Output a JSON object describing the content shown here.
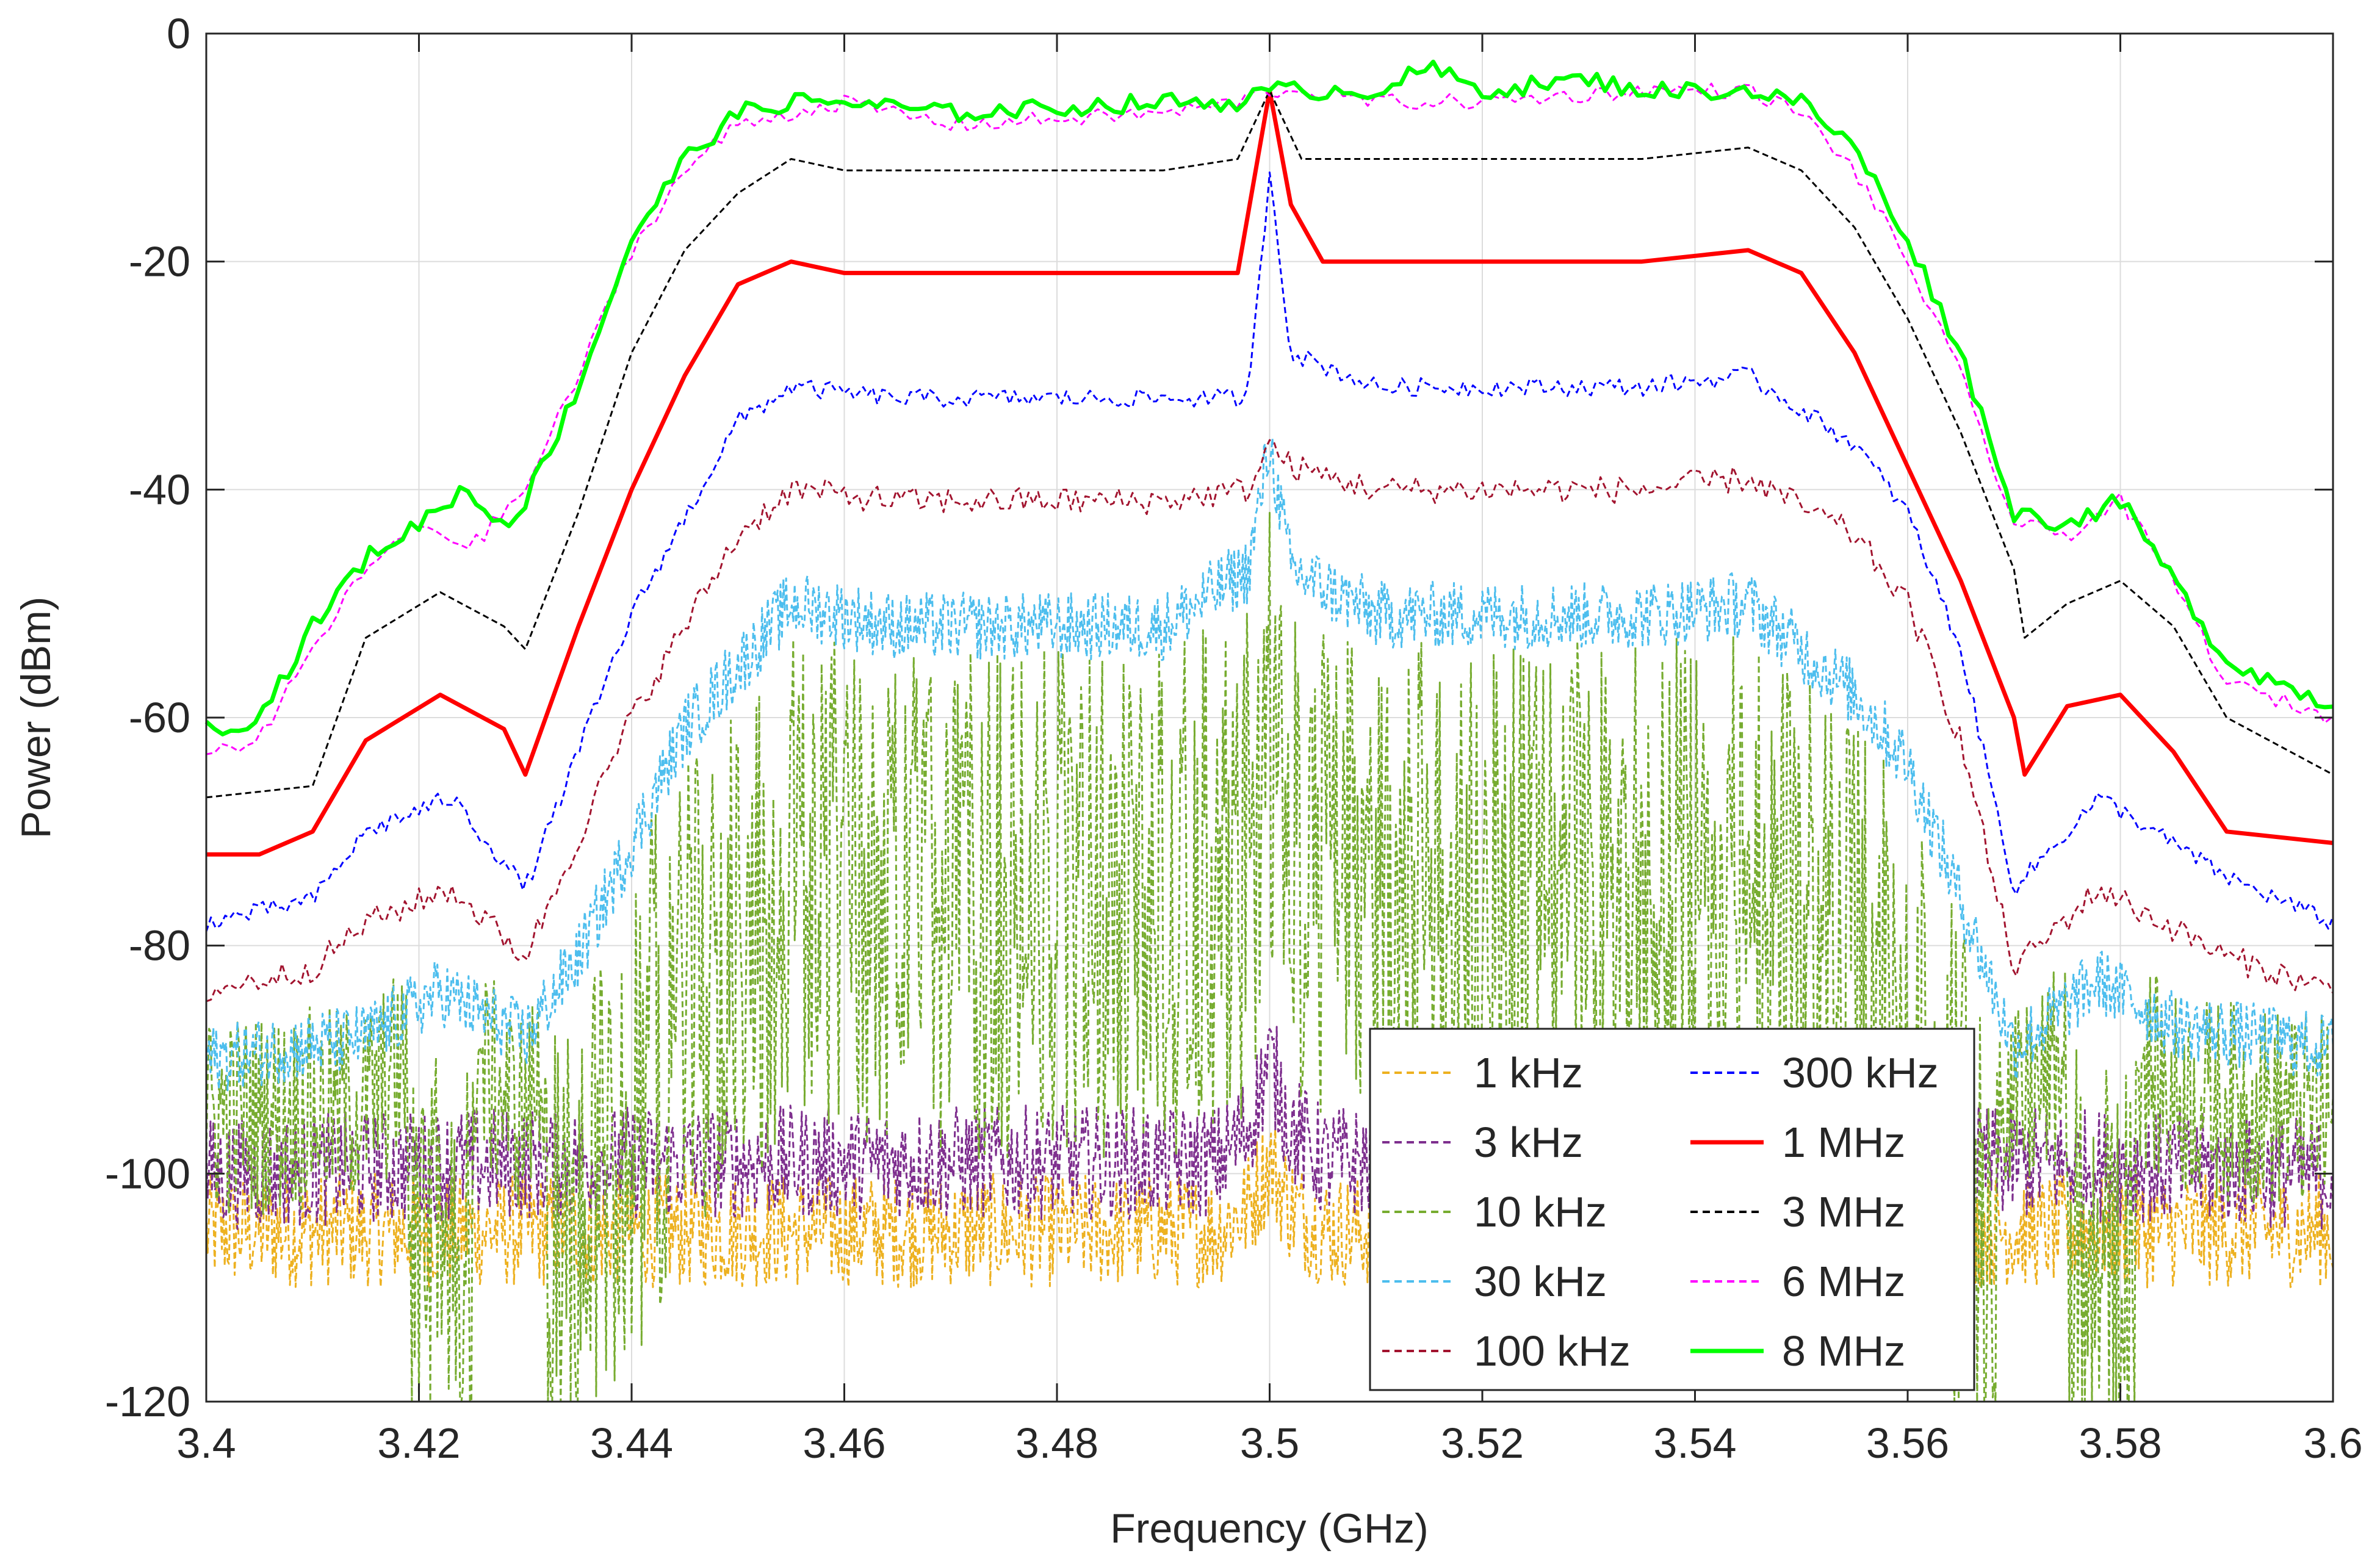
{
  "chart_data": {
    "type": "line",
    "title": "",
    "xlabel": "Frequency (GHz)",
    "ylabel": "Power (dBm)",
    "xlim": [
      3.4,
      3.6
    ],
    "ylim": [
      -120,
      0
    ],
    "xticks": [
      3.4,
      3.42,
      3.44,
      3.46,
      3.48,
      3.5,
      3.52,
      3.54,
      3.56,
      3.58,
      3.6
    ],
    "xtick_labels": [
      "3.4",
      "3.42",
      "3.44",
      "3.46",
      "3.48",
      "3.5",
      "3.52",
      "3.54",
      "3.56",
      "3.58",
      "3.6"
    ],
    "yticks": [
      0,
      -20,
      -40,
      -60,
      -80,
      -100,
      -120
    ],
    "ytick_labels": [
      "0",
      "-20",
      "-40",
      "-60",
      "-80",
      "-100",
      "-120"
    ],
    "grid": true,
    "legend_position": "bottom-right",
    "series": [
      {
        "name": "1 kHz",
        "color": "#EDB120",
        "style": "dashed",
        "x": [
          3.4,
          3.43,
          3.45,
          3.495,
          3.498,
          3.5,
          3.502,
          3.505,
          3.55,
          3.57,
          3.6
        ],
        "y": [
          -105,
          -105,
          -105,
          -105,
          -103,
          -99,
          -103,
          -105,
          -105,
          -105,
          -105
        ]
      },
      {
        "name": "3 kHz",
        "color": "#7E2F8E",
        "style": "dashed",
        "x": [
          3.4,
          3.43,
          3.45,
          3.495,
          3.498,
          3.5,
          3.502,
          3.505,
          3.55,
          3.57,
          3.6
        ],
        "y": [
          -100,
          -99,
          -99,
          -99,
          -96,
          -90,
          -96,
          -99,
          -99,
          -99,
          -100
        ]
      },
      {
        "name": "10 kHz",
        "color": "#77AC30",
        "style": "dashed",
        "x": [
          3.4,
          3.415,
          3.422,
          3.43,
          3.435,
          3.44,
          3.445,
          3.455,
          3.465,
          3.49,
          3.498,
          3.5,
          3.502,
          3.51,
          3.535,
          3.545,
          3.555,
          3.56,
          3.565,
          3.57,
          3.578,
          3.585,
          3.6
        ],
        "y": [
          -95,
          -94,
          -87,
          -95,
          -82,
          -72,
          -62,
          -52,
          -54,
          -54,
          -50,
          -42,
          -50,
          -53,
          -53,
          -52,
          -60,
          -66,
          -78,
          -95,
          -87,
          -93,
          -95
        ]
      },
      {
        "name": "30 kHz",
        "color": "#4DBEEE",
        "style": "dashed",
        "x": [
          3.4,
          3.415,
          3.422,
          3.43,
          3.435,
          3.44,
          3.445,
          3.455,
          3.465,
          3.49,
          3.498,
          3.5,
          3.502,
          3.51,
          3.535,
          3.545,
          3.555,
          3.56,
          3.565,
          3.57,
          3.578,
          3.585,
          3.6
        ],
        "y": [
          -90,
          -88,
          -84,
          -88,
          -81,
          -71,
          -61,
          -50,
          -52,
          -52,
          -47,
          -36,
          -47,
          -51,
          -51,
          -50,
          -58,
          -64,
          -76,
          -89,
          -83,
          -87,
          -89
        ]
      },
      {
        "name": "100 kHz",
        "color": "#A2142F",
        "style": "dashed",
        "x": [
          3.4,
          3.41,
          3.415,
          3.423,
          3.43,
          3.44,
          3.45,
          3.455,
          3.465,
          3.49,
          3.498,
          3.5,
          3.502,
          3.51,
          3.535,
          3.545,
          3.555,
          3.56,
          3.565,
          3.57,
          3.578,
          3.59,
          3.6
        ],
        "y": [
          -84,
          -82,
          -78,
          -75,
          -81,
          -60,
          -44,
          -40,
          -41,
          -41,
          -40,
          -36,
          -38,
          -40,
          -40,
          -39,
          -44,
          -50,
          -62,
          -82,
          -75,
          -81,
          -84
        ]
      },
      {
        "name": "300 kHz",
        "color": "#0000FF",
        "style": "dashed",
        "x": [
          3.4,
          3.41,
          3.415,
          3.423,
          3.43,
          3.44,
          3.45,
          3.455,
          3.465,
          3.49,
          3.498,
          3.5,
          3.502,
          3.51,
          3.535,
          3.545,
          3.555,
          3.56,
          3.565,
          3.57,
          3.578,
          3.59,
          3.6
        ],
        "y": [
          -78,
          -76,
          -70,
          -67,
          -75,
          -51,
          -34,
          -31,
          -32,
          -32,
          -32,
          -12,
          -28,
          -31,
          -31,
          -30,
          -36,
          -42,
          -54,
          -75,
          -67,
          -74,
          -78
        ]
      },
      {
        "name": "1 MHz",
        "color": "#FF0000",
        "style": "solid",
        "x": [
          3.4,
          3.405,
          3.41,
          3.415,
          3.422,
          3.428,
          3.43,
          3.435,
          3.44,
          3.445,
          3.45,
          3.455,
          3.46,
          3.49,
          3.497,
          3.5,
          3.502,
          3.505,
          3.535,
          3.545,
          3.55,
          3.555,
          3.56,
          3.565,
          3.57,
          3.571,
          3.575,
          3.58,
          3.585,
          3.59,
          3.6
        ],
        "y": [
          -72,
          -72,
          -70,
          -62,
          -58,
          -61,
          -65,
          -52,
          -40,
          -30,
          -22,
          -20,
          -21,
          -21,
          -21,
          -5,
          -15,
          -20,
          -20,
          -19,
          -21,
          -28,
          -38,
          -48,
          -60,
          -65,
          -59,
          -58,
          -63,
          -70,
          -71
        ]
      },
      {
        "name": "3 MHz",
        "color": "#000000",
        "style": "dashed",
        "x": [
          3.4,
          3.41,
          3.415,
          3.422,
          3.428,
          3.43,
          3.435,
          3.44,
          3.445,
          3.45,
          3.455,
          3.46,
          3.49,
          3.497,
          3.5,
          3.503,
          3.535,
          3.545,
          3.55,
          3.555,
          3.56,
          3.565,
          3.57,
          3.571,
          3.575,
          3.58,
          3.585,
          3.59,
          3.6
        ],
        "y": [
          -67,
          -66,
          -53,
          -49,
          -52,
          -54,
          -42,
          -28,
          -19,
          -14,
          -11,
          -12,
          -12,
          -11,
          -5,
          -11,
          -11,
          -10,
          -12,
          -17,
          -25,
          -35,
          -47,
          -53,
          -50,
          -48,
          -52,
          -60,
          -65
        ]
      },
      {
        "name": "6 MHz",
        "color": "#FF00FF",
        "style": "dashed",
        "x": [
          3.4,
          3.405,
          3.41,
          3.415,
          3.42,
          3.425,
          3.43,
          3.435,
          3.44,
          3.445,
          3.45,
          3.455,
          3.46,
          3.47,
          3.49,
          3.497,
          3.5,
          3.503,
          3.51,
          3.52,
          3.535,
          3.545,
          3.55,
          3.555,
          3.56,
          3.565,
          3.57,
          3.575,
          3.58,
          3.585,
          3.59,
          3.6
        ],
        "y": [
          -63,
          -62,
          -54,
          -47,
          -43,
          -45,
          -40,
          -30,
          -19,
          -12,
          -8,
          -7,
          -6,
          -8,
          -7,
          -6,
          -5,
          -5,
          -6,
          -6,
          -5,
          -5,
          -7,
          -12,
          -20,
          -30,
          -43,
          -44,
          -41,
          -48,
          -57,
          -60
        ]
      },
      {
        "name": "8 MHz",
        "color": "#00FF00",
        "style": "solid",
        "x": [
          3.4,
          3.405,
          3.41,
          3.415,
          3.42,
          3.424,
          3.428,
          3.43,
          3.435,
          3.44,
          3.445,
          3.45,
          3.455,
          3.46,
          3.47,
          3.49,
          3.497,
          3.5,
          3.503,
          3.51,
          3.515,
          3.52,
          3.53,
          3.535,
          3.545,
          3.55,
          3.555,
          3.56,
          3.565,
          3.57,
          3.575,
          3.58,
          3.585,
          3.59,
          3.6
        ],
        "y": [
          -61,
          -60,
          -52,
          -46,
          -43,
          -40,
          -43,
          -41,
          -31,
          -18,
          -11,
          -7,
          -6,
          -6,
          -7,
          -6,
          -6,
          -5,
          -5,
          -5,
          -3,
          -5,
          -4,
          -5,
          -5,
          -6,
          -10,
          -18,
          -28,
          -42,
          -43,
          -41,
          -48,
          -55,
          -59
        ]
      }
    ]
  }
}
